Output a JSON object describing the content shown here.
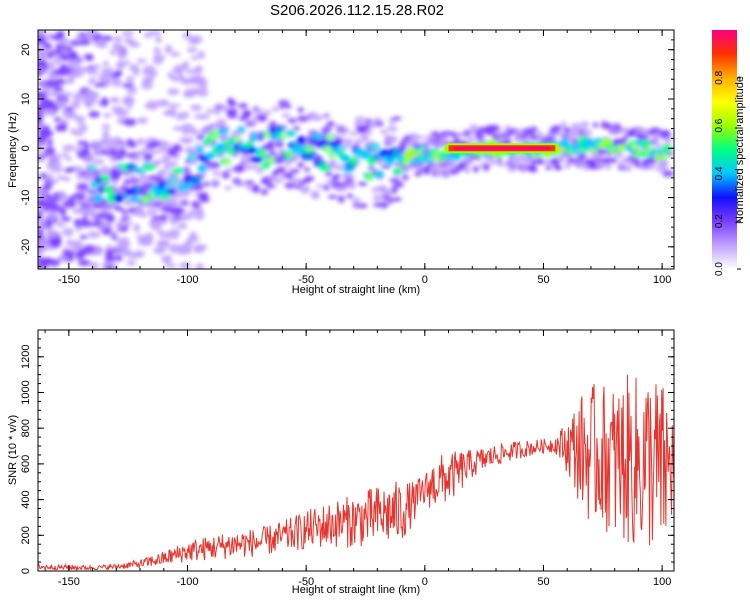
{
  "title": "S206.2026.112.15.28.R02",
  "colorbar": {
    "label": "Normalized spectral amplitude",
    "ticks": [
      "0.0",
      "0.2",
      "0.4",
      "0.6",
      "0.8"
    ],
    "range": [
      0,
      1
    ],
    "colors": [
      "#ffffff",
      "#c0a0ff",
      "#7a3cff",
      "#1010ff",
      "#00c8ff",
      "#00ff80",
      "#9cff00",
      "#ffff00",
      "#ffb000",
      "#ff3000",
      "#ff0080"
    ]
  },
  "chart_data": [
    {
      "type": "heatmap",
      "xlabel": "Height of straight line (km)",
      "ylabel": "Frequency (Hz)",
      "xlim": [
        -163,
        105
      ],
      "ylim": [
        -24.5,
        24
      ],
      "xticks": [
        "-150",
        "-100",
        "-50",
        "0",
        "50",
        "100"
      ],
      "yticks": [
        "-20",
        "-10",
        "0",
        "10",
        "20"
      ],
      "ridge": {
        "x": [
          -140,
          -130,
          -120,
          -110,
          -100,
          -90,
          -80,
          -70,
          -60,
          -50,
          -40,
          -30,
          -20,
          -10,
          0,
          10,
          20,
          30,
          40,
          50,
          60,
          70,
          80,
          90,
          100
        ],
        "y": [
          -7,
          -7,
          -7,
          -7,
          -6,
          0,
          1,
          -1,
          1,
          -1,
          -1,
          -3,
          -3,
          -2,
          -1,
          -1,
          0,
          0,
          0,
          0,
          0.5,
          0.5,
          0.5,
          0,
          -1
        ]
      },
      "peak_band": {
        "x_range": [
          10,
          55
        ],
        "y": 0,
        "value": 1.0
      }
    },
    {
      "type": "line",
      "xlabel": "Height of straight line (km)",
      "ylabel": "SNR (10 * v/v)",
      "xlim": [
        -163,
        105
      ],
      "ylim": [
        0,
        1350
      ],
      "xticks": [
        "-150",
        "-100",
        "-50",
        "0",
        "50",
        "100"
      ],
      "yticks": [
        "0",
        "200",
        "400",
        "600",
        "800",
        "1000",
        "1200"
      ],
      "color": "#e8342c",
      "series": [
        {
          "x": [
            -163,
            -150,
            -140,
            -130,
            -120,
            -110,
            -100,
            -90,
            -80,
            -70,
            -60,
            -50,
            -40,
            -30,
            -20,
            -10,
            -5,
            0,
            5,
            10,
            15,
            20,
            30,
            40,
            50,
            55,
            60,
            65,
            70,
            75,
            80,
            85,
            90,
            95,
            100,
            105
          ],
          "y": [
            25,
            20,
            18,
            25,
            40,
            70,
            110,
            130,
            150,
            160,
            190,
            230,
            260,
            280,
            310,
            330,
            380,
            450,
            500,
            520,
            560,
            600,
            650,
            680,
            700,
            710,
            700,
            680,
            650,
            650,
            600,
            620,
            600,
            620,
            550,
            600
          ],
          "spread": [
            15,
            15,
            12,
            15,
            25,
            40,
            60,
            70,
            80,
            80,
            90,
            110,
            130,
            150,
            170,
            180,
            120,
            100,
            150,
            140,
            120,
            80,
            60,
            50,
            40,
            50,
            150,
            300,
            400,
            400,
            450,
            480,
            500,
            520,
            520,
            300
          ]
        }
      ]
    }
  ]
}
